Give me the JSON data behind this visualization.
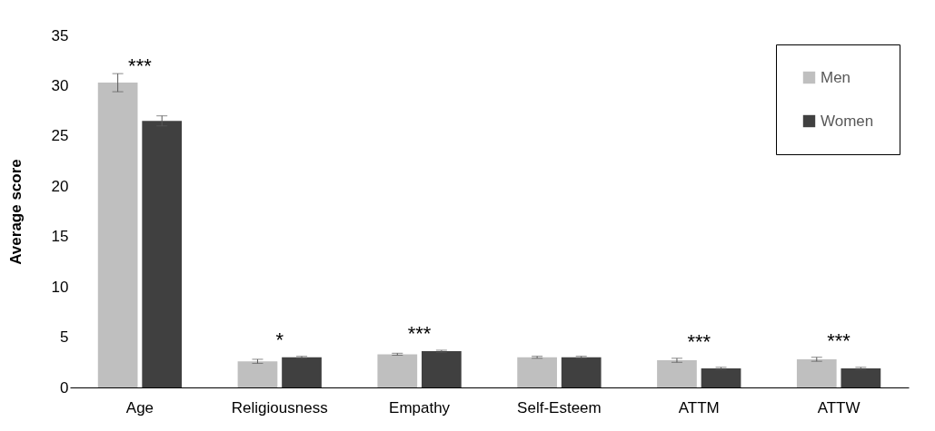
{
  "chart_data": {
    "type": "bar",
    "ylabel": "Average score",
    "categories": [
      "Age",
      "Religiousness",
      "Empathy",
      "Self-Esteem",
      "ATTM",
      "ATTW"
    ],
    "series": [
      {
        "name": "Men",
        "color": "#bfbfbf",
        "values": [
          30.3,
          2.6,
          3.3,
          3.0,
          2.7,
          2.8
        ],
        "errors": [
          0.9,
          0.2,
          0.1,
          0.1,
          0.2,
          0.2
        ]
      },
      {
        "name": "Women",
        "color": "#404040",
        "values": [
          26.5,
          3.0,
          3.6,
          3.0,
          1.9,
          1.9
        ],
        "errors": [
          0.5,
          0.1,
          0.1,
          0.1,
          0.1,
          0.1
        ]
      }
    ],
    "ylim": [
      0,
      35
    ],
    "yticks": [
      0,
      5,
      10,
      15,
      20,
      25,
      30,
      35
    ],
    "grid": false,
    "legend": "top right",
    "annotations": [
      {
        "text": "***",
        "x": "Age",
        "y": 30.3
      },
      {
        "text": "*",
        "x": "Religiousness",
        "y": 3.1
      },
      {
        "text": "***",
        "x": "Empathy",
        "y": 3.7
      },
      {
        "text": "***",
        "x": "ATTM",
        "y": 2.9
      },
      {
        "text": "***",
        "x": "ATTW",
        "y": 3.0
      }
    ]
  }
}
